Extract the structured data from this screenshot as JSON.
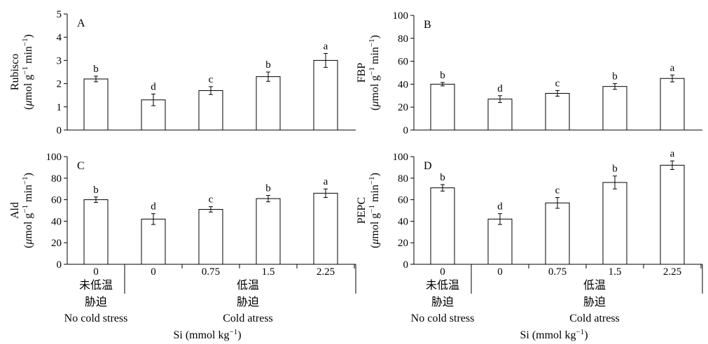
{
  "chart_data": [
    {
      "type": "bar",
      "panel": "A",
      "ylabel_name": "Rubisco",
      "ylabel_unit_pre": "(",
      "ylabel_unit_mu": "μ",
      "ylabel_unit_mid": "mol g",
      "ylabel_unit_sup1": "−1",
      "ylabel_unit_mid2": " min",
      "ylabel_unit_sup2": "−1",
      "ylabel_unit_post": ")",
      "ylim": [
        0,
        5
      ],
      "yticks": [
        "0",
        "1",
        "2",
        "3",
        "4",
        "5"
      ],
      "categories": [
        "0",
        "0",
        "0.75",
        "1.5",
        "2.25"
      ],
      "values": [
        2.2,
        1.3,
        1.7,
        2.3,
        3.0
      ],
      "errors": [
        0.12,
        0.25,
        0.17,
        0.2,
        0.3
      ],
      "letters": [
        "b",
        "d",
        "c",
        "b",
        "a"
      ]
    },
    {
      "type": "bar",
      "panel": "B",
      "ylabel_name": "FBP",
      "ylabel_unit_pre": "(",
      "ylabel_unit_mu": "μ",
      "ylabel_unit_mid": "mol g",
      "ylabel_unit_sup1": "−1",
      "ylabel_unit_mid2": " min",
      "ylabel_unit_sup2": "−1",
      "ylabel_unit_post": ")",
      "ylim": [
        0,
        100
      ],
      "yticks": [
        "0",
        "20",
        "40",
        "60",
        "80",
        "100"
      ],
      "categories": [
        "0",
        "0",
        "0.75",
        "1.5",
        "2.25"
      ],
      "values": [
        40,
        27,
        32,
        38,
        45
      ],
      "errors": [
        1.5,
        3,
        2.5,
        2.5,
        3
      ],
      "letters": [
        "b",
        "d",
        "c",
        "b",
        "a"
      ]
    },
    {
      "type": "bar",
      "panel": "C",
      "ylabel_name": "Ald",
      "ylabel_unit_pre": "(",
      "ylabel_unit_mu": "μ",
      "ylabel_unit_mid": "mol g",
      "ylabel_unit_sup1": "−1",
      "ylabel_unit_mid2": " min",
      "ylabel_unit_sup2": "−1",
      "ylabel_unit_post": ")",
      "ylim": [
        0,
        100
      ],
      "yticks": [
        "0",
        "20",
        "40",
        "60",
        "80",
        "100"
      ],
      "categories": [
        "0",
        "0",
        "0.75",
        "1.5",
        "2.25"
      ],
      "values": [
        60,
        42,
        51,
        61,
        66
      ],
      "errors": [
        2.5,
        5,
        2.5,
        3,
        4
      ],
      "letters": [
        "b",
        "d",
        "c",
        "b",
        "a"
      ]
    },
    {
      "type": "bar",
      "panel": "D",
      "ylabel_name": "PEPC",
      "ylabel_unit_pre": "(",
      "ylabel_unit_mu": "μ",
      "ylabel_unit_mid": "mol g",
      "ylabel_unit_sup1": "−1",
      "ylabel_unit_mid2": " min",
      "ylabel_unit_sup2": "−1",
      "ylabel_unit_post": ")",
      "ylim": [
        0,
        100
      ],
      "yticks": [
        "0",
        "20",
        "40",
        "60",
        "80",
        "100"
      ],
      "categories": [
        "0",
        "0",
        "0.75",
        "1.5",
        "2.25"
      ],
      "values": [
        71,
        42,
        57,
        76,
        92
      ],
      "errors": [
        3,
        5,
        5,
        6,
        4
      ],
      "letters": [
        "b",
        "d",
        "c",
        "b",
        "a"
      ]
    }
  ],
  "groups": {
    "control_cn_line1": "未低温",
    "control_cn_line2": "胁迫",
    "control_en": "No cold stress",
    "cold_cn_line1": "低温",
    "cold_cn_line2": "胁迫",
    "cold_en": "Cold atress"
  },
  "xtitle": {
    "pre": "Si (mmol kg",
    "sup": "−1",
    "post": ")"
  }
}
